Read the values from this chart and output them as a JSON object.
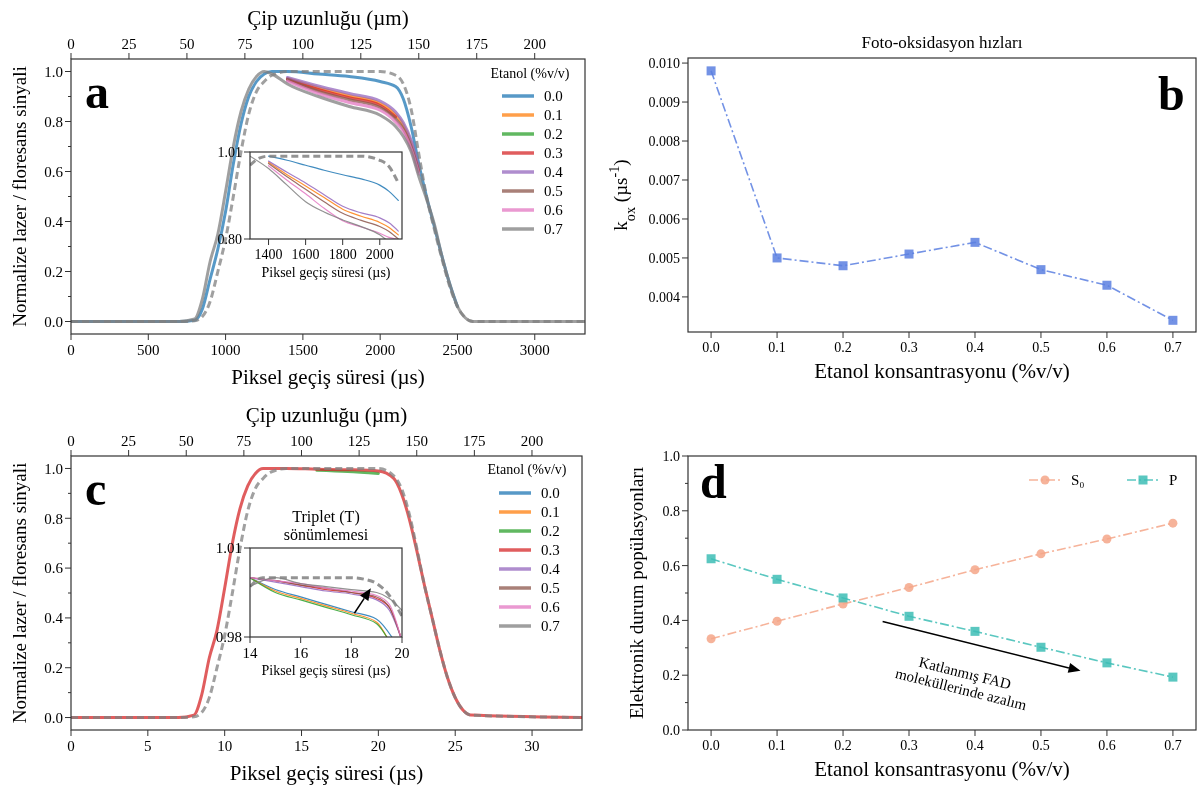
{
  "chart_data": [
    {
      "type": "line",
      "xlabel": "Piksel geçiş süresi (µs)",
      "ylabel": "Normalize lazer / floresans sinyali",
      "x2label": "Çip uzunluğu (µm)",
      "legend_title": "Etanol (%v/v)",
      "legend": "top right",
      "annotations": [
        "a"
      ],
      "xlim": [
        0,
        3325
      ],
      "x2lim": [
        0,
        221.7
      ],
      "ylim": [
        -0.05,
        1.05
      ],
      "xticks": [
        0,
        500,
        1000,
        1500,
        2000,
        2500,
        3000
      ],
      "x2ticks": [
        0,
        25,
        50,
        75,
        100,
        125,
        150,
        175,
        200
      ],
      "yticks": [
        {
          "value": 0,
          "label": "0.0"
        },
        {
          "value": 0.1,
          "label": null
        },
        {
          "value": 0.2,
          "label": "0.2"
        },
        {
          "value": 0.3,
          "label": null
        },
        {
          "value": 0.4,
          "label": "0.4"
        },
        {
          "value": 0.5,
          "label": null
        },
        {
          "value": 0.6,
          "label": "0.6"
        },
        {
          "value": 0.7,
          "label": null
        },
        {
          "value": 0.8,
          "label": "0.8"
        },
        {
          "value": 0.9,
          "label": null
        },
        {
          "value": 1,
          "label": "1.0"
        }
      ],
      "x": [
        0,
        700,
        800,
        850,
        900,
        950,
        1000,
        1050,
        1100,
        1150,
        1200,
        1250,
        1300,
        1400,
        1600,
        1800,
        2000,
        2100,
        2150,
        2200,
        2250,
        2300,
        2350,
        2400,
        2450,
        2500,
        2550,
        2600,
        3325
      ],
      "series": [
        {
          "name": "0.0",
          "color": "#1f77b4",
          "values": [
            0,
            0,
            0.005,
            0.05,
            0.17,
            0.29,
            0.44,
            0.63,
            0.79,
            0.9,
            0.96,
            0.99,
            1.0,
            1.0,
            0.99,
            0.98,
            0.96,
            0.94,
            0.89,
            0.78,
            0.63,
            0.5,
            0.38,
            0.26,
            0.15,
            0.06,
            null,
            null,
            null
          ]
        },
        {
          "name": "0.1",
          "color": "#ff7f0e",
          "values": [
            null,
            null,
            null,
            null,
            null,
            null,
            null,
            null,
            null,
            null,
            null,
            null,
            null,
            0.972,
            0.935,
            0.903,
            0.872,
            0.826,
            0.785,
            0.715,
            0.605,
            null,
            null,
            null,
            null,
            null,
            null,
            null,
            null
          ]
        },
        {
          "name": "0.2",
          "color": "#2ca02c",
          "values": [
            null,
            null,
            null,
            null,
            null,
            null,
            null,
            null,
            null,
            null,
            null,
            null,
            null,
            null,
            null,
            null,
            null,
            null,
            null,
            null,
            null,
            null,
            null,
            null,
            null,
            null,
            null,
            null,
            null
          ]
        },
        {
          "name": "0.3",
          "color": "#d62728",
          "values": [
            null,
            null,
            null,
            null,
            null,
            null,
            null,
            null,
            null,
            null,
            null,
            null,
            null,
            0.97,
            0.928,
            0.895,
            0.864,
            0.818,
            null,
            null,
            null,
            null,
            null,
            null,
            null,
            null,
            null,
            null,
            null
          ]
        },
        {
          "name": "0.4",
          "color": "#9467bd",
          "values": [
            null,
            null,
            null,
            null,
            null,
            null,
            null,
            null,
            null,
            null,
            null,
            null,
            null,
            0.976,
            0.942,
            0.912,
            0.882,
            0.838,
            0.795,
            0.725,
            0.612,
            null,
            null,
            null,
            null,
            null,
            null,
            null,
            null
          ]
        },
        {
          "name": "0.5",
          "color": "#8c564b",
          "values": [
            null,
            null,
            null,
            null,
            null,
            null,
            null,
            null,
            null,
            null,
            null,
            null,
            null,
            0.968,
            0.921,
            0.887,
            0.856,
            0.81,
            0.77,
            0.7,
            0.6,
            null,
            null,
            null,
            null,
            null,
            null,
            null,
            null
          ]
        },
        {
          "name": "0.6",
          "color": "#e377c2",
          "values": [
            null,
            null,
            null,
            null,
            null,
            null,
            null,
            null,
            null,
            null,
            null,
            null,
            null,
            0.962,
            0.912,
            0.876,
            0.845,
            0.798,
            0.76,
            0.69,
            0.59,
            null,
            null,
            null,
            null,
            null,
            null,
            null,
            null
          ]
        },
        {
          "name": "0.7",
          "color": "#7f7f7f",
          "values": [
            0,
            0,
            0.01,
            0.09,
            0.24,
            0.35,
            0.52,
            0.7,
            0.84,
            0.93,
            0.98,
            1.0,
            0.99,
            0.95,
            0.9,
            0.86,
            0.825,
            0.78,
            0.74,
            0.68,
            0.58,
            0.49,
            0.39,
            0.26,
            0.15,
            0.06,
            0.015,
            0,
            0
          ]
        },
        {
          "color": "#808080",
          "line_style": "dashed",
          "values": [
            0,
            0,
            0.003,
            0.02,
            0.08,
            0.2,
            0.33,
            0.5,
            0.68,
            0.83,
            0.92,
            0.96,
            0.985,
            1.0,
            1.0,
            1.0,
            1.0,
            0.985,
            0.95,
            0.85,
            0.67,
            0.5,
            0.37,
            0.25,
            0.14,
            0.06,
            0.015,
            0,
            0
          ]
        }
      ]
    },
    {
      "type": "line",
      "xlabel": "Piksel geçiş süresi (µs)",
      "xlim": [
        1300,
        2120
      ],
      "ylim": [
        0.8,
        1.01
      ],
      "xticks": [
        1400,
        1600,
        1800,
        2000
      ],
      "yticks": [
        {
          "value": 0.8,
          "label": "0.80"
        },
        1.01
      ],
      "series": [
        {
          "color": "#1f77b4",
          "x": [
            1400,
            1500,
            1600,
            1700,
            1800,
            1900,
            2000,
            2050,
            2100
          ],
          "values": [
            1.0,
            0.99,
            0.978,
            0.966,
            0.955,
            0.945,
            0.93,
            0.915,
            0.893
          ]
        },
        {
          "color": "#ff7f0e",
          "x": [
            1400,
            1500,
            1600,
            1700,
            1800,
            1900,
            2000,
            2050,
            2100
          ],
          "values": [
            0.985,
            0.955,
            0.928,
            0.9,
            0.872,
            0.855,
            0.84,
            0.828,
            0.81
          ]
        },
        {
          "color": "#9467bd",
          "x": [
            1400,
            1500,
            1600,
            1700,
            1800,
            1900,
            2000,
            2050,
            2100
          ],
          "values": [
            0.988,
            0.961,
            0.935,
            0.907,
            0.879,
            0.863,
            0.851,
            0.839,
            0.819
          ]
        },
        {
          "color": "#8c564b",
          "x": [
            1400,
            1500,
            1600,
            1700,
            1800,
            1900,
            2000,
            2050,
            2100
          ],
          "values": [
            0.982,
            0.95,
            0.92,
            0.89,
            0.862,
            0.845,
            0.83,
            0.818,
            0.8
          ]
        },
        {
          "color": "#e377c2",
          "x": [
            1400,
            1500,
            1600,
            1700,
            1800,
            1900,
            2000,
            2050,
            2090
          ],
          "values": [
            0.977,
            0.942,
            0.909,
            0.874,
            0.844,
            0.829,
            0.814,
            0.804,
            0.8
          ]
        },
        {
          "color": "#7f7f7f",
          "x": [
            1300,
            1400,
            1500,
            1600,
            1700,
            1800,
            1900,
            2000,
            2030
          ],
          "values": [
            1.0,
            0.97,
            0.93,
            0.89,
            0.865,
            0.846,
            0.83,
            0.81,
            0.8
          ]
        },
        {
          "color": "#808080",
          "line_style": "dashed",
          "x": [
            1300,
            1350,
            1400,
            1500,
            1600,
            1700,
            1800,
            1900,
            2000,
            2050,
            2100
          ],
          "values": [
            0.978,
            0.995,
            1.0,
            1.0,
            1.0,
            1.0,
            1.0,
            1.0,
            0.99,
            0.975,
            0.935
          ]
        }
      ]
    },
    {
      "type": "line",
      "title": "Foto-oksidasyon hızları",
      "xlabel": "Etanol konsantrasyonu (%v/v)",
      "ylabel": "k$_{ox}$ (µs$^{-1}$)",
      "annotations": [
        "b"
      ],
      "marker": "square",
      "line_style": "dashdot",
      "xlim": [
        -0.035,
        0.735
      ],
      "ylim": [
        0.0031,
        0.01013
      ],
      "xticks": [
        {
          "value": 0,
          "label": "0.0"
        },
        {
          "value": 0.1,
          "label": "0.1"
        },
        {
          "value": 0.2,
          "label": "0.2"
        },
        {
          "value": 0.3,
          "label": "0.3"
        },
        {
          "value": 0.4,
          "label": "0.4"
        },
        {
          "value": 0.5,
          "label": "0.5"
        },
        {
          "value": 0.6,
          "label": "0.6"
        },
        {
          "value": 0.7,
          "label": "0.7"
        }
      ],
      "yticks": [
        0.004,
        0.005,
        0.006,
        0.007,
        0.008,
        0.009,
        {
          "value": 0.01,
          "label": "0.010"
        }
      ],
      "x": [
        0,
        0.1,
        0.2,
        0.3,
        0.4,
        0.5,
        0.6,
        0.7
      ],
      "series": [
        {
          "color": "#5a7fe0",
          "values": [
            0.0098,
            0.005,
            0.0048,
            0.0051,
            0.0054,
            0.0047,
            0.0043,
            0.0034
          ]
        }
      ]
    },
    {
      "type": "line",
      "xlabel": "Piksel geçiş süresi (µs)",
      "ylabel": "Normalize lazer / floresans sinyali",
      "x2label": "Çip uzunluğu (µm)",
      "legend_title": "Etanol (%v/v)",
      "legend": "top right",
      "annotations": [
        "c"
      ],
      "xlim": [
        0,
        33.25
      ],
      "x2lim": [
        0,
        221.7
      ],
      "ylim": [
        -0.05,
        1.05
      ],
      "xticks": [
        0,
        5,
        10,
        15,
        20,
        25,
        30
      ],
      "x2ticks": [
        0,
        25,
        50,
        75,
        100,
        125,
        150,
        175,
        200
      ],
      "yticks": [
        {
          "value": 0,
          "label": "0.0"
        },
        {
          "value": 0.1,
          "label": null
        },
        {
          "value": 0.2,
          "label": "0.2"
        },
        {
          "value": 0.3,
          "label": null
        },
        {
          "value": 0.4,
          "label": "0.4"
        },
        {
          "value": 0.5,
          "label": null
        },
        {
          "value": 0.6,
          "label": "0.6"
        },
        {
          "value": 0.7,
          "label": null
        },
        {
          "value": 0.8,
          "label": "0.8"
        },
        {
          "value": 0.9,
          "label": null
        },
        {
          "value": 1,
          "label": "1.0"
        }
      ],
      "x": [
        0,
        7,
        8,
        8.5,
        9,
        9.5,
        10,
        10.5,
        11,
        11.5,
        12,
        12.5,
        13,
        14,
        16,
        18,
        20,
        21,
        21.5,
        22,
        22.5,
        23,
        23.5,
        24,
        24.5,
        25,
        25.5,
        26,
        33.25
      ],
      "series": [
        {
          "name": "0.0",
          "color": "#1f77b4",
          "values": [
            null,
            null,
            null,
            null,
            null,
            null,
            null,
            null,
            null,
            null,
            null,
            null,
            null,
            null,
            null,
            null,
            null,
            null,
            null,
            null,
            null,
            null,
            null,
            null,
            null,
            null,
            null,
            null,
            null
          ]
        },
        {
          "name": "0.1",
          "color": "#ff7f0e",
          "values": [
            null,
            null,
            null,
            null,
            null,
            null,
            null,
            null,
            null,
            null,
            null,
            null,
            null,
            null,
            null,
            null,
            null,
            null,
            null,
            null,
            null,
            null,
            null,
            null,
            null,
            null,
            null,
            null,
            null
          ]
        },
        {
          "name": "0.2",
          "color": "#2ca02c",
          "values": [
            null,
            null,
            null,
            null,
            null,
            null,
            null,
            null,
            null,
            null,
            null,
            null,
            null,
            null,
            0.993,
            0.988,
            0.98,
            null,
            null,
            null,
            null,
            null,
            null,
            null,
            null,
            null,
            null,
            null,
            null
          ]
        },
        {
          "name": "0.3",
          "color": "#d62728",
          "values": [
            0,
            0,
            0.01,
            0.09,
            0.24,
            0.35,
            0.52,
            0.7,
            0.84,
            0.93,
            0.98,
            1.0,
            1.0,
            1.0,
            0.997,
            0.995,
            0.99,
            0.96,
            0.9,
            0.8,
            0.67,
            0.53,
            0.4,
            0.27,
            0.16,
            0.08,
            0.03,
            0.01,
            0
          ]
        },
        {
          "name": "0.4",
          "color": "#9467bd",
          "values": [
            null,
            null,
            null,
            null,
            null,
            null,
            null,
            null,
            null,
            null,
            null,
            null,
            null,
            null,
            null,
            null,
            null,
            null,
            null,
            null,
            null,
            null,
            null,
            null,
            null,
            null,
            null,
            null,
            null
          ]
        },
        {
          "name": "0.5",
          "color": "#8c564b",
          "values": [
            null,
            null,
            null,
            null,
            null,
            null,
            null,
            null,
            null,
            null,
            null,
            null,
            null,
            null,
            null,
            null,
            null,
            null,
            null,
            null,
            null,
            null,
            null,
            null,
            null,
            null,
            null,
            null,
            null
          ]
        },
        {
          "name": "0.6",
          "color": "#e377c2",
          "values": [
            null,
            null,
            null,
            null,
            null,
            null,
            null,
            null,
            null,
            null,
            null,
            null,
            null,
            null,
            null,
            null,
            null,
            null,
            null,
            null,
            null,
            null,
            null,
            null,
            null,
            null,
            null,
            null,
            null
          ]
        },
        {
          "name": "0.7",
          "color": "#7f7f7f",
          "values": [
            null,
            null,
            null,
            null,
            null,
            null,
            null,
            null,
            null,
            null,
            null,
            null,
            null,
            null,
            null,
            null,
            null,
            null,
            null,
            null,
            null,
            null,
            null,
            null,
            null,
            null,
            null,
            null,
            null
          ]
        },
        {
          "color": "#808080",
          "line_style": "dashed",
          "values": [
            0,
            0,
            0.003,
            0.02,
            0.08,
            0.2,
            0.33,
            0.5,
            0.68,
            0.83,
            0.92,
            0.96,
            0.985,
            1.0,
            1.0,
            1.0,
            1.0,
            0.97,
            0.92,
            0.82,
            0.68,
            0.53,
            0.4,
            0.27,
            0.16,
            0.08,
            0.03,
            0.01,
            0
          ]
        }
      ]
    },
    {
      "type": "line",
      "title": "Triplet (T) sönümlemesi",
      "xlabel": "Piksel geçiş süresi (µs)",
      "xlim": [
        14,
        20
      ],
      "ylim": [
        0.98,
        1.01
      ],
      "xticks": [
        14,
        16,
        18,
        20
      ],
      "yticks": [
        {
          "value": 0.98,
          "label": "0.98"
        },
        1.01
      ],
      "series": [
        {
          "color": "#1f77b4",
          "x": [
            14,
            15,
            16,
            17,
            18,
            19,
            19.6
          ],
          "values": [
            1.0,
            0.996,
            0.9935,
            0.991,
            0.9885,
            0.986,
            0.98
          ]
        },
        {
          "color": "#ff7f0e",
          "x": [
            14,
            15,
            16,
            17,
            18,
            19,
            19.4
          ],
          "values": [
            1.0,
            0.9955,
            0.993,
            0.9905,
            0.988,
            0.985,
            0.98
          ]
        },
        {
          "color": "#2ca02c",
          "x": [
            14,
            15,
            16,
            17,
            18,
            19,
            19.4
          ],
          "values": [
            1.0,
            0.995,
            0.9925,
            0.99,
            0.9875,
            0.9845,
            0.98
          ]
        },
        {
          "color": "#d62728",
          "x": [
            15,
            16,
            17,
            18,
            19,
            19.5,
            19.95
          ],
          "values": [
            0.999,
            0.9975,
            0.996,
            0.995,
            0.993,
            0.99,
            0.98
          ]
        },
        {
          "color": "#9467bd",
          "x": [
            14,
            15,
            16,
            17,
            18,
            19,
            19.5,
            19.95
          ],
          "values": [
            1.0,
            0.9985,
            0.997,
            0.9955,
            0.9945,
            0.9925,
            0.989,
            0.98
          ]
        },
        {
          "color": "#8c564b",
          "x": [
            14,
            15,
            16,
            17,
            18,
            19,
            19.5,
            19.95
          ],
          "values": [
            1.0,
            0.999,
            0.9975,
            0.9965,
            0.995,
            0.9935,
            0.99,
            0.98
          ]
        },
        {
          "color": "#e377c2",
          "x": [
            14,
            15,
            16,
            17,
            18,
            19,
            19.5,
            19.95
          ],
          "values": [
            1.0,
            0.999,
            0.998,
            0.9965,
            0.9955,
            0.994,
            0.991,
            0.98
          ]
        },
        {
          "color": "#7f7f7f",
          "x": [
            14,
            15,
            16,
            17,
            18,
            19,
            19.5,
            20
          ],
          "values": [
            0.997,
            1.0,
            0.998,
            0.997,
            0.996,
            0.995,
            0.993,
            0.989
          ]
        },
        {
          "color": "#808080",
          "line_style": "dashed",
          "x": [
            14,
            14.5,
            15,
            16,
            17,
            18,
            18.5,
            19,
            19.5,
            20
          ],
          "values": [
            0.997,
            1.0,
            1.0,
            1.0,
            1.0,
            1.0,
            0.9995,
            0.998,
            0.994,
            0.987
          ]
        }
      ]
    },
    {
      "type": "line",
      "xlabel": "Etanol konsantrasyonu (%v/v)",
      "ylabel": "Elektronik durum popülasyonları",
      "legend": "top right",
      "annotations": [
        "d",
        "Katlanmış FAD moleküllerinde azalım"
      ],
      "line_style": "dashdot",
      "xlim": [
        -0.035,
        0.735
      ],
      "ylim": [
        0,
        1
      ],
      "xticks": [
        {
          "value": 0,
          "label": "0.0"
        },
        {
          "value": 0.1,
          "label": "0.1"
        },
        {
          "value": 0.2,
          "label": "0.2"
        },
        {
          "value": 0.3,
          "label": "0.3"
        },
        {
          "value": 0.4,
          "label": "0.4"
        },
        {
          "value": 0.5,
          "label": "0.5"
        },
        {
          "value": 0.6,
          "label": "0.6"
        },
        {
          "value": 0.7,
          "label": "0.7"
        }
      ],
      "yticks": [
        {
          "value": 0,
          "label": "0.0"
        },
        {
          "value": 0.1,
          "label": null
        },
        {
          "value": 0.2,
          "label": "0.2"
        },
        {
          "value": 0.3,
          "label": null
        },
        {
          "value": 0.4,
          "label": "0.4"
        },
        {
          "value": 0.5,
          "label": null
        },
        {
          "value": 0.6,
          "label": "0.6"
        },
        {
          "value": 0.7,
          "label": null
        },
        {
          "value": 0.8,
          "label": "0.8"
        },
        {
          "value": 0.9,
          "label": null
        },
        {
          "value": 1,
          "label": "1.0"
        }
      ],
      "x": [
        0,
        0.1,
        0.2,
        0.3,
        0.4,
        0.5,
        0.6,
        0.7
      ],
      "series": [
        {
          "name": "S₀",
          "color": "#f5a688",
          "marker": "circle",
          "values": [
            0.333,
            0.397,
            0.46,
            0.52,
            0.585,
            0.643,
            0.697,
            0.755
          ]
        },
        {
          "name": "P",
          "color": "#3dbdb5",
          "marker": "square",
          "values": [
            0.625,
            0.55,
            0.482,
            0.415,
            0.36,
            0.302,
            0.245,
            0.193
          ]
        }
      ]
    }
  ]
}
